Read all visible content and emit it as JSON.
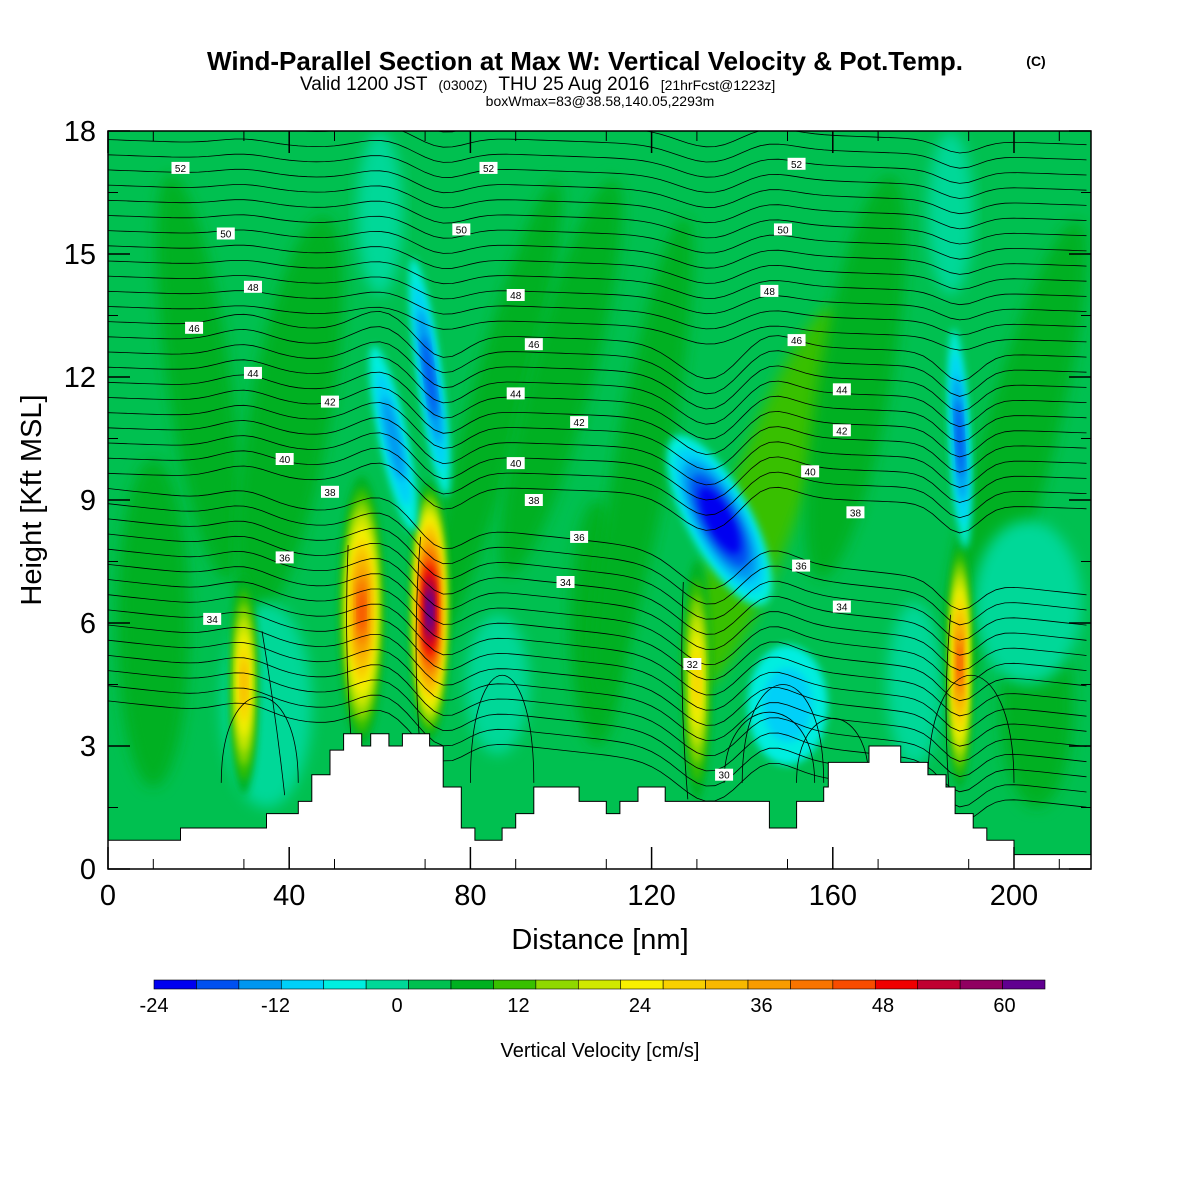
{
  "header": {
    "title": "Wind-Parallel Section at Max W: Vertical Velocity & Pot.Temp.",
    "title_mark": "(C)",
    "valid_prefix": "Valid 1200 JST",
    "valid_z": "(0300Z)",
    "valid_date": "THU 25 Aug 2016",
    "forecast_note": "[21hrFcst@1223z]",
    "boxmax": "boxWmax=83@38.58,140.05,2293m"
  },
  "chart_data": {
    "type": "heatmap",
    "xlabel": "Distance [nm]",
    "ylabel": "Height [Kft MSL]",
    "xlim": [
      0,
      217
    ],
    "ylim": [
      0,
      18
    ],
    "x_ticks": [
      "0",
      "40",
      "80",
      "120",
      "160",
      "200"
    ],
    "y_ticks": [
      "0",
      "3",
      "6",
      "9",
      "12",
      "15",
      "18"
    ],
    "colorbar": {
      "label": "Vertical Velocity [cm/s]",
      "min": -24,
      "max": 64,
      "step": 4,
      "tick_labels": [
        "-24",
        "-12",
        "0",
        "12",
        "24",
        "36",
        "48",
        "60"
      ],
      "colors": [
        "#0000f0",
        "#0050f0",
        "#0096f0",
        "#00d0f8",
        "#00eee0",
        "#00d898",
        "#00c050",
        "#00b020",
        "#38c000",
        "#90d800",
        "#d0e800",
        "#f8f000",
        "#f8d000",
        "#f8b800",
        "#f89c00",
        "#f87400",
        "#f84c00",
        "#f00000",
        "#c00030",
        "#900060",
        "#600090"
      ]
    },
    "updraft_cores": [
      {
        "x": 30,
        "z": 4.5,
        "peak_cm_s": 30
      },
      {
        "x": 56,
        "z": 6.3,
        "peak_cm_s": 42
      },
      {
        "x": 71,
        "z": 6.3,
        "peak_cm_s": 60
      },
      {
        "x": 130,
        "z": 4.6,
        "peak_cm_s": 26
      },
      {
        "x": 188,
        "z": 5.0,
        "peak_cm_s": 40
      }
    ],
    "downdraft_cores": [
      {
        "x": 63,
        "z": 10.5,
        "peak_cm_s": -14
      },
      {
        "x": 71,
        "z": 12,
        "peak_cm_s": -16
      },
      {
        "x": 135,
        "z": 8.5,
        "peak_cm_s": -24
      },
      {
        "x": 188,
        "z": 10.5,
        "peak_cm_s": -18
      },
      {
        "x": 150,
        "z": 4.0,
        "peak_cm_s": -8
      }
    ],
    "pot_temp_contour_labels": [
      {
        "text": "52",
        "x": 16,
        "z": 17.1
      },
      {
        "text": "52",
        "x": 84,
        "z": 17.1
      },
      {
        "text": "52",
        "x": 152,
        "z": 17.2
      },
      {
        "text": "50",
        "x": 26,
        "z": 15.5
      },
      {
        "text": "50",
        "x": 78,
        "z": 15.6
      },
      {
        "text": "50",
        "x": 149,
        "z": 15.6
      },
      {
        "text": "48",
        "x": 32,
        "z": 14.2
      },
      {
        "text": "48",
        "x": 90,
        "z": 14.0
      },
      {
        "text": "48",
        "x": 146,
        "z": 14.1
      },
      {
        "text": "46",
        "x": 19,
        "z": 13.2
      },
      {
        "text": "46",
        "x": 94,
        "z": 12.8
      },
      {
        "text": "46",
        "x": 152,
        "z": 12.9
      },
      {
        "text": "44",
        "x": 32,
        "z": 12.1
      },
      {
        "text": "44",
        "x": 90,
        "z": 11.6
      },
      {
        "text": "44",
        "x": 162,
        "z": 11.7
      },
      {
        "text": "42",
        "x": 49,
        "z": 11.4
      },
      {
        "text": "42",
        "x": 104,
        "z": 10.9
      },
      {
        "text": "42",
        "x": 162,
        "z": 10.7
      },
      {
        "text": "40",
        "x": 39,
        "z": 10.0
      },
      {
        "text": "40",
        "x": 90,
        "z": 9.9
      },
      {
        "text": "40",
        "x": 155,
        "z": 9.7
      },
      {
        "text": "38",
        "x": 49,
        "z": 9.2
      },
      {
        "text": "38",
        "x": 94,
        "z": 9.0
      },
      {
        "text": "38",
        "x": 165,
        "z": 8.7
      },
      {
        "text": "36",
        "x": 39,
        "z": 7.6
      },
      {
        "text": "36",
        "x": 104,
        "z": 8.1
      },
      {
        "text": "36",
        "x": 153,
        "z": 7.4
      },
      {
        "text": "34",
        "x": 23,
        "z": 6.1
      },
      {
        "text": "34",
        "x": 101,
        "z": 7.0
      },
      {
        "text": "34",
        "x": 162,
        "z": 6.4
      },
      {
        "text": "32",
        "x": 129,
        "z": 5.0
      },
      {
        "text": "30",
        "x": 136,
        "z": 2.3
      }
    ],
    "terrain_kft": [
      [
        0,
        0.7
      ],
      [
        16,
        0.7
      ],
      [
        16,
        1.0
      ],
      [
        35,
        1.0
      ],
      [
        35,
        1.35
      ],
      [
        42,
        1.35
      ],
      [
        42,
        1.65
      ],
      [
        45,
        1.65
      ],
      [
        45,
        2.3
      ],
      [
        49,
        2.3
      ],
      [
        49,
        2.9
      ],
      [
        52,
        2.9
      ],
      [
        52,
        3.3
      ],
      [
        56,
        3.3
      ],
      [
        56,
        3.0
      ],
      [
        58,
        3.0
      ],
      [
        58,
        3.3
      ],
      [
        62,
        3.3
      ],
      [
        62,
        3.0
      ],
      [
        65,
        3.0
      ],
      [
        65,
        3.3
      ],
      [
        71,
        3.3
      ],
      [
        71,
        3.0
      ],
      [
        74,
        3.0
      ],
      [
        74,
        2.0
      ],
      [
        78,
        2.0
      ],
      [
        78,
        1.0
      ],
      [
        81,
        1.0
      ],
      [
        81,
        0.7
      ],
      [
        87,
        0.7
      ],
      [
        87,
        1.0
      ],
      [
        90,
        1.0
      ],
      [
        90,
        1.35
      ],
      [
        94,
        1.35
      ],
      [
        94,
        2.0
      ],
      [
        104,
        2.0
      ],
      [
        104,
        1.65
      ],
      [
        110,
        1.65
      ],
      [
        110,
        1.35
      ],
      [
        113,
        1.35
      ],
      [
        113,
        1.65
      ],
      [
        117,
        1.65
      ],
      [
        117,
        2.0
      ],
      [
        123,
        2.0
      ],
      [
        123,
        1.65
      ],
      [
        146,
        1.65
      ],
      [
        146,
        1.0
      ],
      [
        152,
        1.0
      ],
      [
        152,
        1.65
      ],
      [
        158,
        1.65
      ],
      [
        158,
        2.0
      ],
      [
        159,
        2.0
      ],
      [
        159,
        2.6
      ],
      [
        168,
        2.6
      ],
      [
        168,
        3.0
      ],
      [
        175,
        3.0
      ],
      [
        175,
        2.6
      ],
      [
        181,
        2.6
      ],
      [
        181,
        2.3
      ],
      [
        185,
        2.3
      ],
      [
        185,
        2.0
      ],
      [
        187,
        2.0
      ],
      [
        187,
        1.35
      ],
      [
        191,
        1.35
      ],
      [
        191,
        1.0
      ],
      [
        194,
        1.0
      ],
      [
        194,
        0.7
      ],
      [
        200,
        0.7
      ],
      [
        200,
        0.35
      ],
      [
        217,
        0.35
      ]
    ]
  }
}
